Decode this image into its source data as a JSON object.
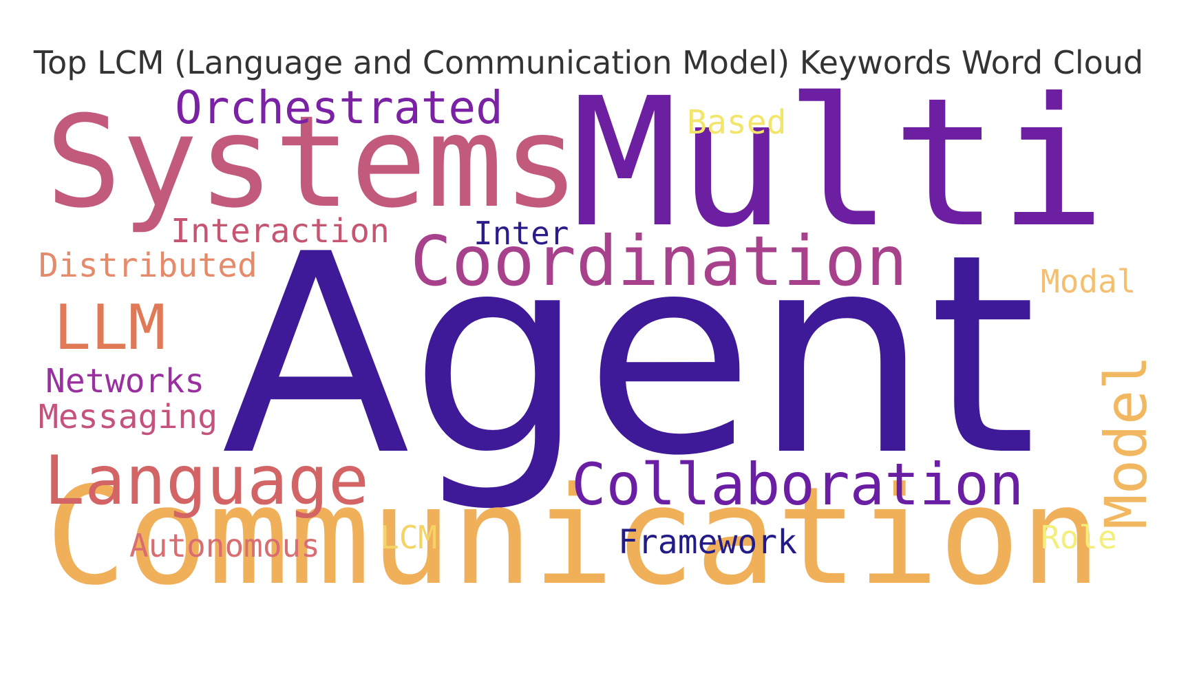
{
  "title": "Top LCM (Language and Communication Model) Keywords Word Cloud",
  "words": {
    "agent": {
      "text": "Agent",
      "color": "#3e1a98"
    },
    "communication": {
      "text": "Communication",
      "color": "#f0b05a"
    },
    "multi": {
      "text": "Multi",
      "color": "#6c1fa0"
    },
    "systems": {
      "text": "Systems",
      "color": "#c25a7b"
    },
    "coordination": {
      "text": "Coordination",
      "color": "#a8418c"
    },
    "collaboration": {
      "text": "Collaboration",
      "color": "#6a1ea4"
    },
    "language": {
      "text": "Language",
      "color": "#d36466"
    },
    "model": {
      "text": "Model",
      "color": "#f2b861"
    },
    "orchestrated": {
      "text": "Orchestrated",
      "color": "#7a22a3"
    },
    "llm": {
      "text": "LLM",
      "color": "#e07a56"
    },
    "interaction": {
      "text": "Interaction",
      "color": "#c65572"
    },
    "distributed": {
      "text": "Distributed",
      "color": "#e58a6a"
    },
    "networks": {
      "text": "Networks",
      "color": "#9a2fa0"
    },
    "messaging": {
      "text": "Messaging",
      "color": "#c4527c"
    },
    "autonomous": {
      "text": "Autonomous",
      "color": "#d86d72"
    },
    "inter": {
      "text": "Inter",
      "color": "#2a1d8a"
    },
    "based": {
      "text": "Based",
      "color": "#f3e46a"
    },
    "modal": {
      "text": "Modal",
      "color": "#f4bf6e"
    },
    "framework": {
      "text": "Framework",
      "color": "#231b87"
    },
    "lcm": {
      "text": "LCM",
      "color": "#f5d465"
    },
    "role": {
      "text": "Role",
      "color": "#f3ef7a"
    }
  }
}
